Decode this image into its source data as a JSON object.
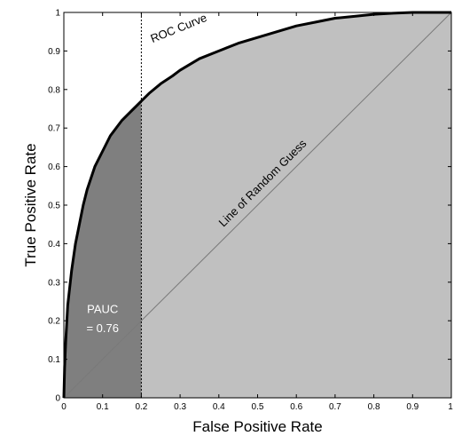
{
  "chart_data": {
    "type": "line",
    "xlabel": "False Positive Rate",
    "ylabel": "True Positive Rate",
    "xlim": [
      0,
      1
    ],
    "ylim": [
      0,
      1
    ],
    "x_ticks": [
      "0",
      "0.1",
      "0.2",
      "0.3",
      "0.4",
      "0.5",
      "0.6",
      "0.7",
      "0.8",
      "0.9",
      "1"
    ],
    "y_ticks": [
      "0",
      "0.1",
      "0.2",
      "0.3",
      "0.4",
      "0.5",
      "0.6",
      "0.7",
      "0.8",
      "0.9",
      "1"
    ],
    "grid": false,
    "series": [
      {
        "x": [
          0,
          0.002,
          0.005,
          0.01,
          0.02,
          0.03,
          0.04,
          0.05,
          0.06,
          0.08,
          0.1,
          0.12,
          0.15,
          0.18,
          0.2,
          0.22,
          0.25,
          0.28,
          0.3,
          0.35,
          0.4,
          0.45,
          0.5,
          0.55,
          0.6,
          0.65,
          0.7,
          0.75,
          0.8,
          0.85,
          0.9,
          0.95,
          1.0
        ],
        "y": [
          0,
          0.08,
          0.15,
          0.24,
          0.33,
          0.4,
          0.45,
          0.5,
          0.54,
          0.6,
          0.64,
          0.68,
          0.72,
          0.75,
          0.77,
          0.79,
          0.815,
          0.835,
          0.85,
          0.88,
          0.9,
          0.92,
          0.935,
          0.95,
          0.965,
          0.975,
          0.985,
          0.99,
          0.995,
          0.998,
          1.0,
          1.0,
          1.0
        ],
        "color": "#000000"
      },
      {
        "x": [
          0,
          1
        ],
        "y": [
          0,
          1
        ],
        "color": "#7a7a7a"
      }
    ],
    "partial_cutoff_x": 0.2,
    "fill_colors": {
      "under_curve": "#c0c0c0",
      "partial_area": "#7f7f7f"
    },
    "annotations": [
      {
        "text": "ROC Curve",
        "x": 0.3,
        "y": 0.95
      },
      {
        "text": "Line of Random Guess",
        "x": 0.52,
        "y": 0.55
      },
      {
        "text": "PAUC",
        "x": 0.1,
        "y": 0.22
      },
      {
        "text": "= 0.76",
        "x": 0.1,
        "y": 0.17
      }
    ]
  }
}
